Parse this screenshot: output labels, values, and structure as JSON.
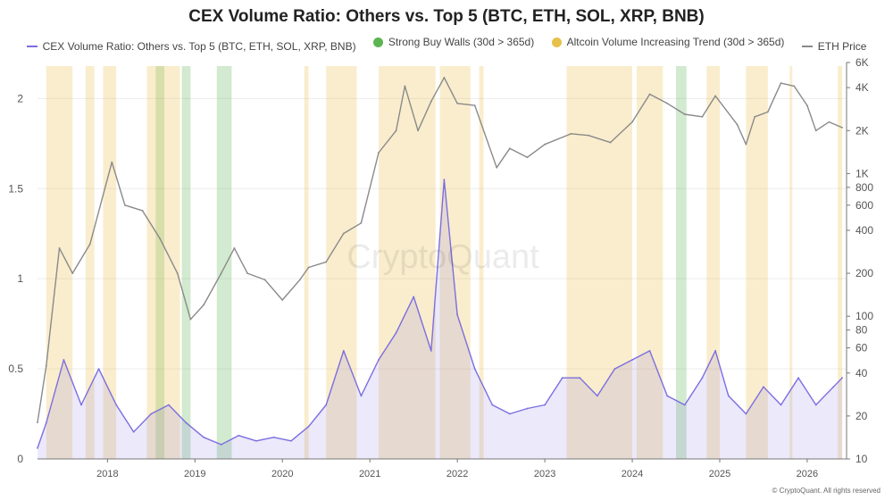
{
  "chart_data": {
    "type": "line",
    "title": "CEX Volume Ratio: Others vs. Top 5 (BTC, ETH, SOL, XRP, BNB)",
    "watermark": "CryptoQuant",
    "footer": "© CryptoQuant. All rights reserved",
    "x_ticks": [
      "2018",
      "2019",
      "2020",
      "2021",
      "2022",
      "2023",
      "2024",
      "2025",
      "2026"
    ],
    "x_range": [
      2017.2,
      2026.45
    ],
    "left_axis": {
      "range": [
        0,
        2.2
      ],
      "ticks": [
        0,
        0.5,
        1,
        1.5,
        2
      ],
      "tick_labels": [
        "0",
        "0.5",
        "1",
        "1.5",
        "2"
      ]
    },
    "right_axis": {
      "scale": "log",
      "range": [
        10,
        6000
      ],
      "ticks": [
        10,
        20,
        40,
        60,
        80,
        100,
        200,
        400,
        600,
        800,
        1000,
        2000,
        4000,
        6000
      ],
      "tick_labels": [
        "10",
        "20",
        "40",
        "60",
        "80",
        "100",
        "200",
        "400",
        "600",
        "800",
        "1K",
        "2K",
        "4K",
        "6K"
      ]
    },
    "series": [
      {
        "name": "CEX Volume Ratio: Others vs. Top 5 (BTC, ETH, SOL, XRP, BNB)",
        "axis": "left",
        "color": "#7b6ee0",
        "points": [
          [
            2017.2,
            0.06
          ],
          [
            2017.3,
            0.2
          ],
          [
            2017.5,
            0.55
          ],
          [
            2017.7,
            0.3
          ],
          [
            2017.9,
            0.5
          ],
          [
            2018.1,
            0.3
          ],
          [
            2018.3,
            0.15
          ],
          [
            2018.5,
            0.25
          ],
          [
            2018.7,
            0.3
          ],
          [
            2018.9,
            0.2
          ],
          [
            2019.1,
            0.12
          ],
          [
            2019.3,
            0.08
          ],
          [
            2019.5,
            0.13
          ],
          [
            2019.7,
            0.1
          ],
          [
            2019.9,
            0.12
          ],
          [
            2020.1,
            0.1
          ],
          [
            2020.3,
            0.18
          ],
          [
            2020.5,
            0.3
          ],
          [
            2020.7,
            0.6
          ],
          [
            2020.9,
            0.35
          ],
          [
            2021.1,
            0.55
          ],
          [
            2021.3,
            0.7
          ],
          [
            2021.5,
            0.9
          ],
          [
            2021.7,
            0.6
          ],
          [
            2021.85,
            1.55
          ],
          [
            2022.0,
            0.8
          ],
          [
            2022.2,
            0.5
          ],
          [
            2022.4,
            0.3
          ],
          [
            2022.6,
            0.25
          ],
          [
            2022.8,
            0.28
          ],
          [
            2023.0,
            0.3
          ],
          [
            2023.2,
            0.45
          ],
          [
            2023.4,
            0.45
          ],
          [
            2023.6,
            0.35
          ],
          [
            2023.8,
            0.5
          ],
          [
            2024.0,
            0.55
          ],
          [
            2024.2,
            0.6
          ],
          [
            2024.4,
            0.35
          ],
          [
            2024.6,
            0.3
          ],
          [
            2024.8,
            0.45
          ],
          [
            2024.95,
            0.6
          ],
          [
            2025.1,
            0.35
          ],
          [
            2025.3,
            0.25
          ],
          [
            2025.5,
            0.4
          ],
          [
            2025.7,
            0.3
          ],
          [
            2025.9,
            0.45
          ],
          [
            2026.1,
            0.3
          ],
          [
            2026.3,
            0.4
          ],
          [
            2026.4,
            0.45
          ]
        ]
      },
      {
        "name": "ETH Price",
        "axis": "right",
        "color": "#8a8a8a",
        "points": [
          [
            2017.2,
            18
          ],
          [
            2017.3,
            45
          ],
          [
            2017.45,
            300
          ],
          [
            2017.6,
            200
          ],
          [
            2017.8,
            320
          ],
          [
            2018.05,
            1200
          ],
          [
            2018.2,
            600
          ],
          [
            2018.4,
            550
          ],
          [
            2018.6,
            350
          ],
          [
            2018.8,
            200
          ],
          [
            2018.95,
            95
          ],
          [
            2019.1,
            120
          ],
          [
            2019.3,
            200
          ],
          [
            2019.45,
            300
          ],
          [
            2019.6,
            200
          ],
          [
            2019.8,
            180
          ],
          [
            2020.0,
            130
          ],
          [
            2020.2,
            180
          ],
          [
            2020.3,
            220
          ],
          [
            2020.5,
            240
          ],
          [
            2020.7,
            380
          ],
          [
            2020.9,
            450
          ],
          [
            2021.1,
            1400
          ],
          [
            2021.3,
            2000
          ],
          [
            2021.4,
            4100
          ],
          [
            2021.55,
            2000
          ],
          [
            2021.7,
            3200
          ],
          [
            2021.85,
            4700
          ],
          [
            2022.0,
            3100
          ],
          [
            2022.2,
            3000
          ],
          [
            2022.45,
            1100
          ],
          [
            2022.6,
            1500
          ],
          [
            2022.8,
            1300
          ],
          [
            2023.0,
            1600
          ],
          [
            2023.3,
            1900
          ],
          [
            2023.5,
            1850
          ],
          [
            2023.75,
            1650
          ],
          [
            2024.0,
            2300
          ],
          [
            2024.2,
            3600
          ],
          [
            2024.4,
            3100
          ],
          [
            2024.6,
            2600
          ],
          [
            2024.8,
            2500
          ],
          [
            2024.95,
            3500
          ],
          [
            2025.2,
            2200
          ],
          [
            2025.3,
            1600
          ],
          [
            2025.4,
            2500
          ],
          [
            2025.55,
            2700
          ],
          [
            2025.7,
            4300
          ],
          [
            2025.85,
            4100
          ],
          [
            2026.0,
            3000
          ],
          [
            2026.1,
            2000
          ],
          [
            2026.25,
            2300
          ],
          [
            2026.4,
            2100
          ]
        ]
      }
    ],
    "highlights": [
      {
        "name": "Strong Buy Walls (30d > 365d)",
        "color": "#5cb552",
        "ranges": [
          [
            2018.55,
            2018.65
          ],
          [
            2018.85,
            2018.95
          ],
          [
            2019.25,
            2019.42
          ],
          [
            2024.5,
            2024.62
          ]
        ]
      },
      {
        "name": "Altcoin Volume Increasing Trend (30d > 365d)",
        "color": "#e8c04a",
        "ranges": [
          [
            2017.3,
            2017.6
          ],
          [
            2017.75,
            2017.85
          ],
          [
            2017.95,
            2018.1
          ],
          [
            2018.45,
            2018.83
          ],
          [
            2020.25,
            2020.3
          ],
          [
            2020.5,
            2020.85
          ],
          [
            2021.1,
            2021.75
          ],
          [
            2021.8,
            2022.15
          ],
          [
            2022.25,
            2022.3
          ],
          [
            2023.25,
            2024.0
          ],
          [
            2024.05,
            2024.35
          ],
          [
            2024.85,
            2025.0
          ],
          [
            2025.3,
            2025.55
          ],
          [
            2025.8,
            2025.83
          ],
          [
            2026.35,
            2026.4
          ]
        ]
      }
    ]
  }
}
